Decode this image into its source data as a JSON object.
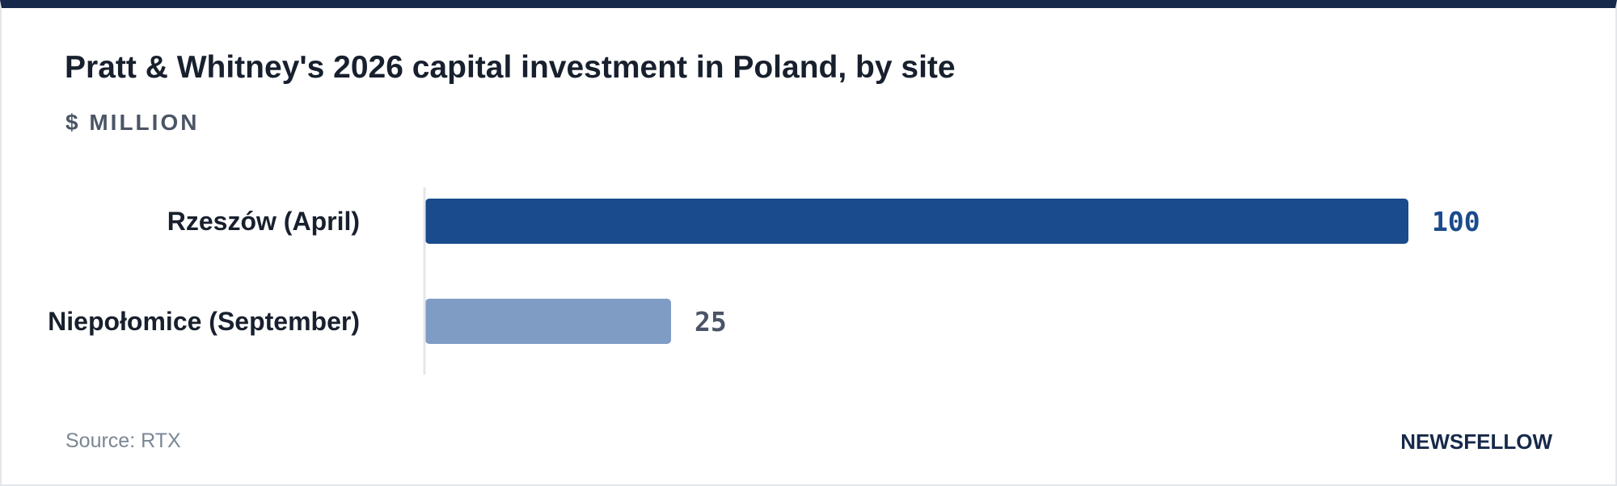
{
  "header": {
    "title": "Pratt & Whitney's 2026 capital investment in Poland, by site",
    "unit": "$ MILLION"
  },
  "footer": {
    "source": "Source: RTX",
    "brand": "NEWSFELLOW"
  },
  "colors": {
    "primary_bar": "#1a4b8c",
    "secondary_bar": "#7f9cc4",
    "primary_label": "#1a4b8c",
    "secondary_label": "#4b5566",
    "axis": "#e3e6ea",
    "category_text": "#18202e"
  },
  "chart_data": {
    "type": "bar",
    "orientation": "horizontal",
    "title": "Pratt & Whitney's 2026 capital investment in Poland, by site",
    "ylabel": "$ MILLION",
    "categories": [
      "Rzeszów (April)",
      "Niepołomice (September)"
    ],
    "values": [
      100,
      25
    ],
    "value_labels": [
      "100",
      "25"
    ],
    "xlim": [
      0,
      100
    ],
    "grid": false,
    "legend": "none"
  }
}
